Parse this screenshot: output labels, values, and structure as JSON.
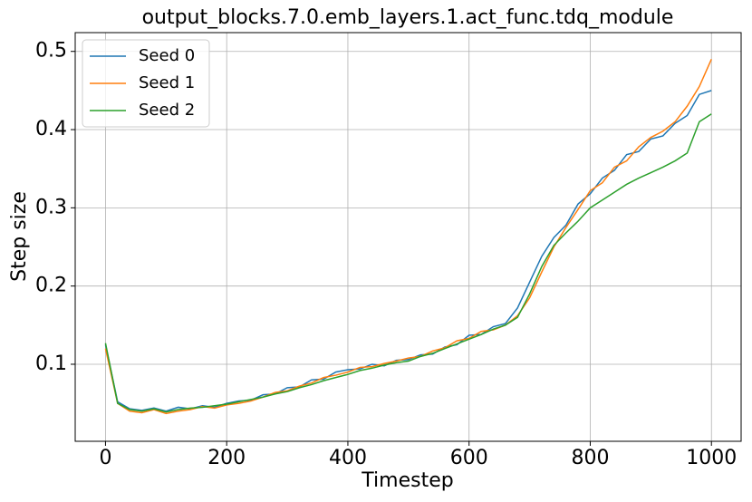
{
  "chart_data": {
    "type": "line",
    "title": "output_blocks.7.0.emb_layers.1.act_func.tdq_module",
    "x_label": "Timestep",
    "y_label": "Step size",
    "x": [
      0,
      20,
      40,
      60,
      80,
      100,
      120,
      140,
      160,
      180,
      200,
      220,
      240,
      260,
      280,
      300,
      320,
      340,
      360,
      380,
      400,
      420,
      440,
      460,
      480,
      500,
      520,
      540,
      560,
      580,
      600,
      620,
      640,
      660,
      680,
      700,
      720,
      740,
      760,
      780,
      800,
      820,
      840,
      860,
      880,
      900,
      920,
      940,
      960,
      980,
      1000
    ],
    "series": [
      {
        "name": "Seed 0",
        "color": "#1f77b4",
        "values": [
          0.125,
          0.052,
          0.043,
          0.041,
          0.044,
          0.04,
          0.045,
          0.043,
          0.047,
          0.045,
          0.05,
          0.053,
          0.054,
          0.061,
          0.062,
          0.07,
          0.071,
          0.08,
          0.081,
          0.09,
          0.093,
          0.094,
          0.1,
          0.098,
          0.105,
          0.106,
          0.112,
          0.113,
          0.122,
          0.125,
          0.137,
          0.138,
          0.148,
          0.152,
          0.172,
          0.205,
          0.238,
          0.262,
          0.278,
          0.305,
          0.318,
          0.338,
          0.348,
          0.368,
          0.372,
          0.388,
          0.392,
          0.408,
          0.418,
          0.445,
          0.45
        ]
      },
      {
        "name": "Seed 1",
        "color": "#ff7f0e",
        "values": [
          0.12,
          0.05,
          0.04,
          0.038,
          0.042,
          0.037,
          0.04,
          0.042,
          0.046,
          0.044,
          0.048,
          0.05,
          0.053,
          0.058,
          0.064,
          0.066,
          0.072,
          0.076,
          0.083,
          0.086,
          0.09,
          0.096,
          0.097,
          0.101,
          0.104,
          0.108,
          0.11,
          0.117,
          0.121,
          0.13,
          0.133,
          0.142,
          0.144,
          0.15,
          0.162,
          0.185,
          0.218,
          0.25,
          0.275,
          0.298,
          0.322,
          0.332,
          0.352,
          0.36,
          0.378,
          0.39,
          0.398,
          0.41,
          0.43,
          0.455,
          0.49
        ]
      },
      {
        "name": "Seed 2",
        "color": "#2ca02c",
        "values": [
          0.127,
          0.05,
          0.042,
          0.04,
          0.043,
          0.039,
          0.042,
          0.044,
          0.045,
          0.047,
          0.049,
          0.052,
          0.055,
          0.058,
          0.062,
          0.065,
          0.07,
          0.074,
          0.079,
          0.083,
          0.087,
          0.092,
          0.095,
          0.099,
          0.102,
          0.104,
          0.11,
          0.114,
          0.12,
          0.126,
          0.132,
          0.138,
          0.145,
          0.15,
          0.16,
          0.19,
          0.225,
          0.252,
          0.268,
          0.283,
          0.3,
          0.31,
          0.32,
          0.33,
          0.338,
          0.345,
          0.352,
          0.36,
          0.37,
          0.41,
          0.42
        ]
      }
    ],
    "xlim": [
      -50,
      1049
    ],
    "ylim": [
      0.0015,
      0.524
    ],
    "xticks": [
      0,
      200,
      400,
      600,
      800,
      1000
    ],
    "yticks": [
      0.1,
      0.2,
      0.3,
      0.4,
      0.5
    ],
    "grid": true,
    "legend": "upper left"
  }
}
